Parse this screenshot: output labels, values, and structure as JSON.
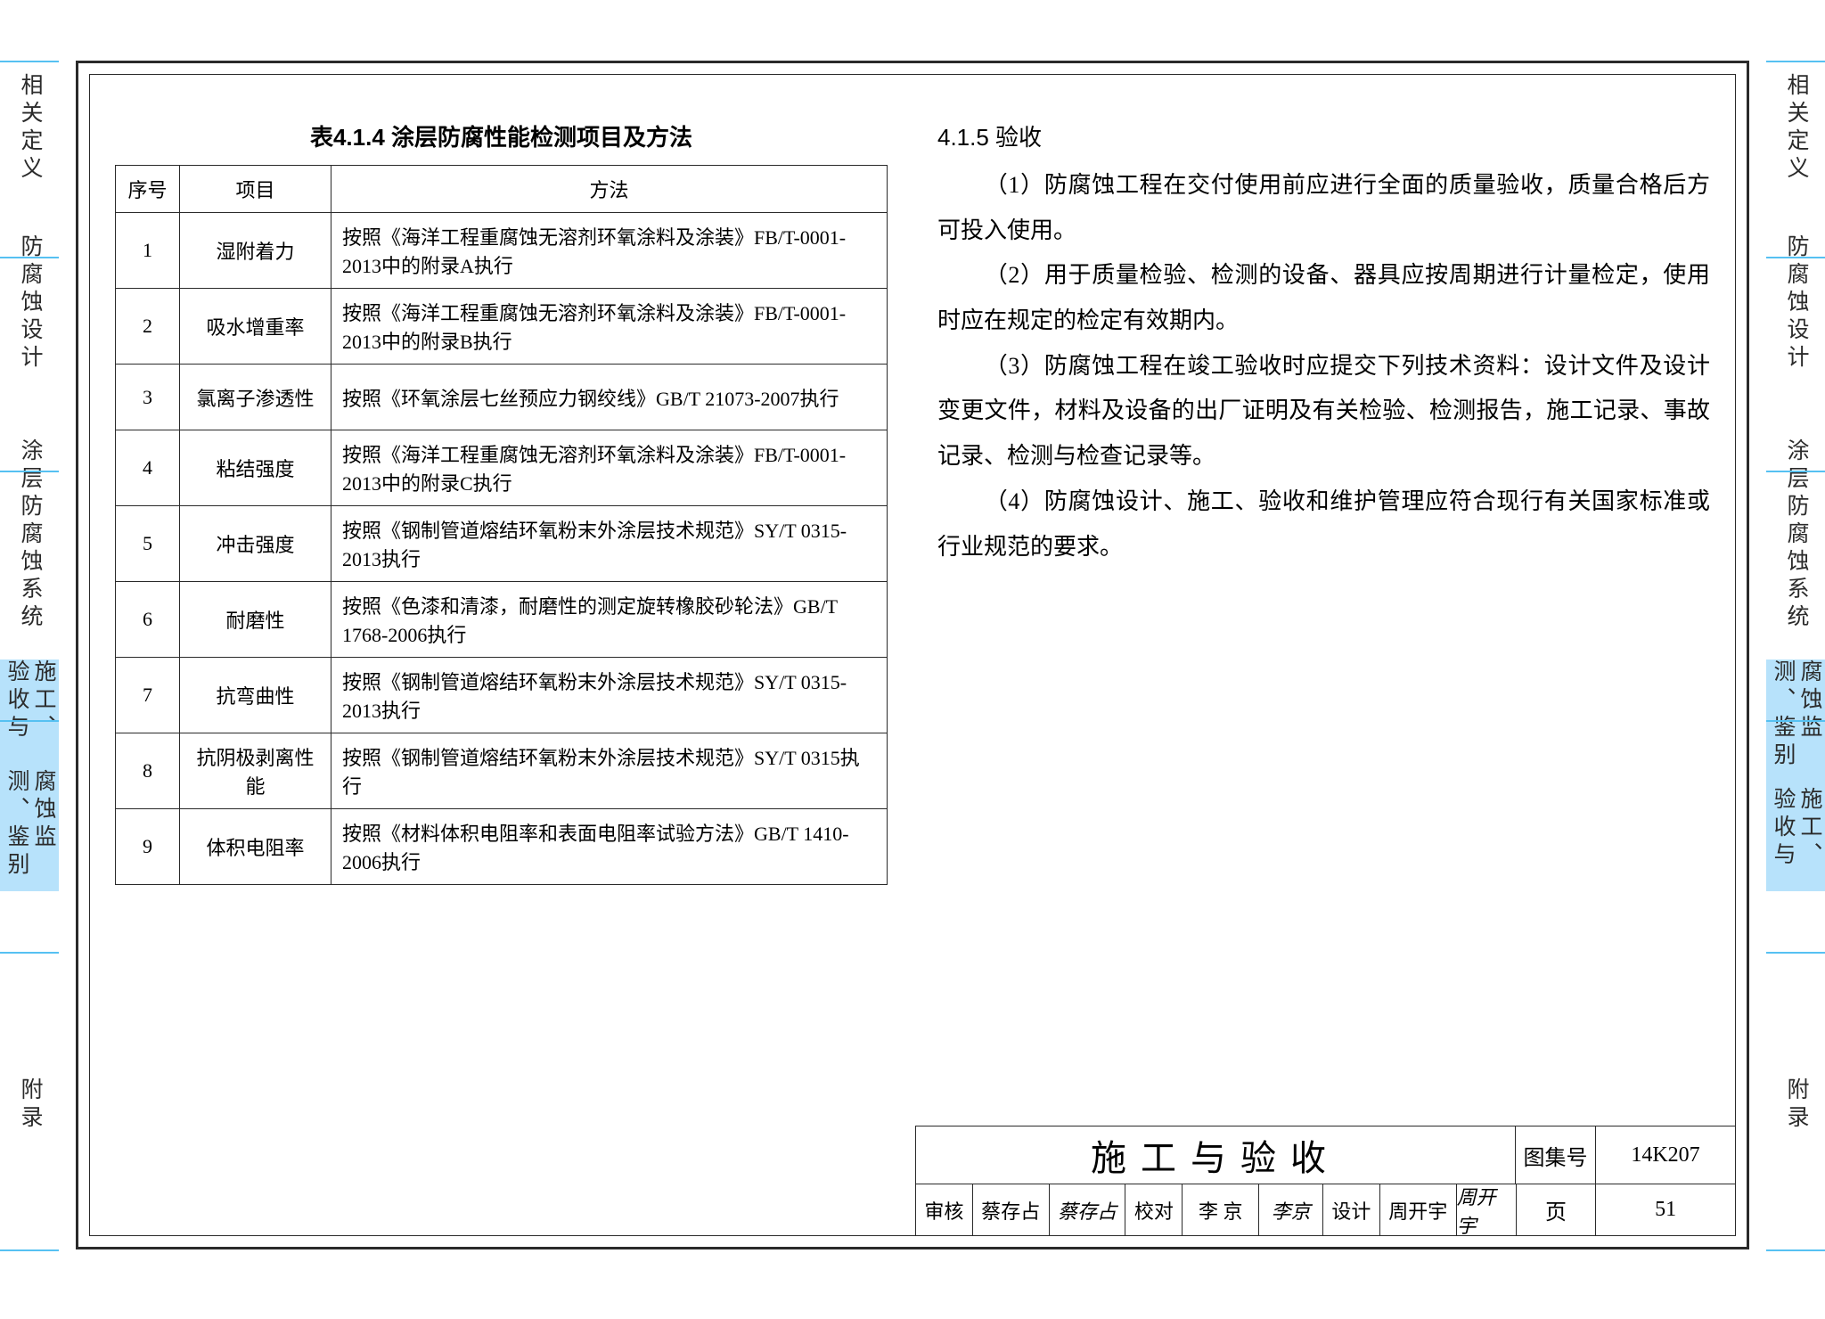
{
  "colors": {
    "tab_active_bg": "#b7e2fb",
    "tab_rule": "#56c1f2",
    "ink": "#2a2a2a"
  },
  "side_tabs": {
    "items": [
      {
        "label": "相关定义",
        "active": false
      },
      {
        "label": "防腐蚀设计",
        "active": false
      },
      {
        "label": "涂层防腐蚀系统",
        "active": false
      },
      {
        "label_a": "施工、验收与",
        "label_b": "腐蚀监测、鉴别",
        "active": true,
        "two": true
      },
      {
        "label": "附录",
        "active": false
      }
    ]
  },
  "table": {
    "title": "表4.1.4 涂层防腐性能检测项目及方法",
    "headers": [
      "序号",
      "项目",
      "方法"
    ],
    "rows": [
      {
        "n": "1",
        "item": "湿附着力",
        "method": "按照《海洋工程重腐蚀无溶剂环氧涂料及涂装》FB/T-0001-2013中的附录A执行"
      },
      {
        "n": "2",
        "item": "吸水增重率",
        "method": "按照《海洋工程重腐蚀无溶剂环氧涂料及涂装》FB/T-0001-2013中的附录B执行"
      },
      {
        "n": "3",
        "item": "氯离子渗透性",
        "method": "按照《环氧涂层七丝预应力钢绞线》GB/T 21073-2007执行"
      },
      {
        "n": "4",
        "item": "粘结强度",
        "method": "按照《海洋工程重腐蚀无溶剂环氧涂料及涂装》FB/T-0001-2013中的附录C执行"
      },
      {
        "n": "5",
        "item": "冲击强度",
        "method": "按照《钢制管道熔结环氧粉末外涂层技术规范》SY/T 0315-2013执行"
      },
      {
        "n": "6",
        "item": "耐磨性",
        "method": "按照《色漆和清漆，耐磨性的测定旋转橡胶砂轮法》GB/T 1768-2006执行"
      },
      {
        "n": "7",
        "item": "抗弯曲性",
        "method": "按照《钢制管道熔结环氧粉末外涂层技术规范》SY/T 0315-2013执行"
      },
      {
        "n": "8",
        "item": "抗阴极剥离性能",
        "method": "按照《钢制管道熔结环氧粉末外涂层技术规范》SY/T 0315执行"
      },
      {
        "n": "9",
        "item": "体积电阻率",
        "method": "按照《材料体积电阻率和表面电阻率试验方法》GB/T 1410-2006执行"
      }
    ]
  },
  "section": {
    "heading": "4.1.5 验收",
    "paras": [
      "（1）防腐蚀工程在交付使用前应进行全面的质量验收，质量合格后方可投入使用。",
      "（2）用于质量检验、检测的设备、器具应按周期进行计量检定，使用时应在规定的检定有效期内。",
      "（3）防腐蚀工程在竣工验收时应提交下列技术资料：设计文件及设计变更文件，材料及设备的出厂证明及有关检验、检测报告，施工记录、事故记录、检测与检查记录等。",
      "（4）防腐蚀设计、施工、验收和维护管理应符合现行有关国家标准或行业规范的要求。"
    ]
  },
  "titleblock": {
    "title": "施工与验收",
    "set_label": "图集号",
    "set_value": "14K207",
    "review_label": "审核",
    "review_name": "蔡存占",
    "review_sig": "蔡存占",
    "check_label": "校对",
    "check_name": "李 京",
    "check_sig": "李京",
    "design_label": "设计",
    "design_name": "周开宇",
    "design_sig": "周开宇",
    "page_label": "页",
    "page_value": "51"
  }
}
